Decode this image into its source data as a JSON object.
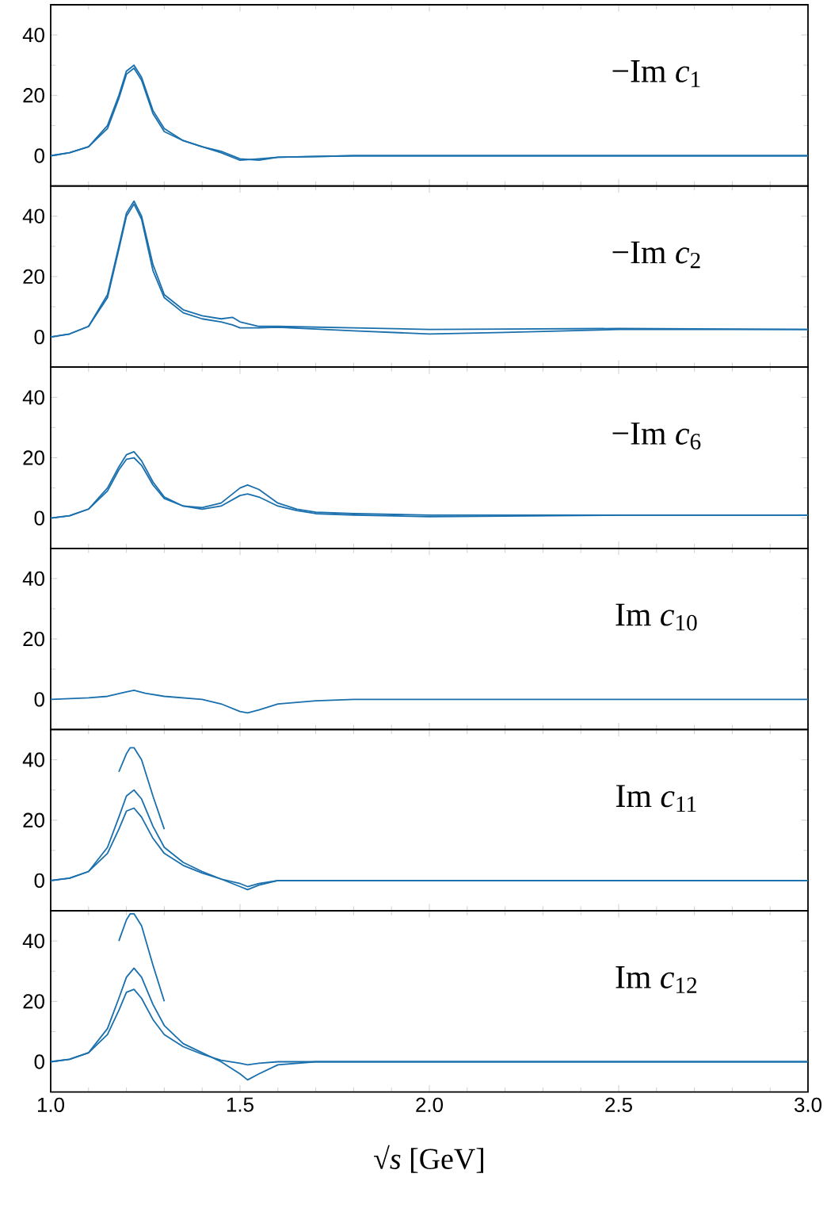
{
  "chart_data": [
    {
      "type": "line",
      "xlim": [
        1,
        3
      ],
      "ylim": [
        -10,
        50
      ],
      "xticks": [
        {
          "value": 1,
          "label": null
        },
        {
          "value": 1.5,
          "label": null
        },
        {
          "value": 2,
          "label": null
        },
        {
          "value": 2.5,
          "label": null
        },
        {
          "value": 3,
          "label": null
        }
      ],
      "yticks": [
        0,
        20,
        40
      ],
      "tick_labels": "y",
      "annotations": [
        "−Im *c*$_{1}$"
      ],
      "x": [
        1.0,
        1.05,
        1.1,
        1.15,
        1.18,
        1.2,
        1.22,
        1.24,
        1.27,
        1.3,
        1.35,
        1.4,
        1.45,
        1.5,
        1.55,
        1.6,
        1.8,
        2.0,
        2.5,
        3.0
      ],
      "series": [
        {
          "color": "#1a6fad",
          "values": [
            0,
            1,
            3,
            10,
            20,
            28,
            30,
            26,
            15,
            9,
            5,
            3,
            1,
            -1.5,
            -1,
            -0.5,
            0,
            0,
            0,
            0
          ]
        },
        {
          "color": "#1a6fad",
          "values": [
            0,
            1,
            3,
            9,
            19,
            27,
            29,
            25,
            14,
            8,
            5,
            3,
            1.5,
            -1,
            -1.5,
            -0.5,
            0,
            0,
            0,
            0
          ]
        }
      ]
    },
    {
      "type": "line",
      "xlim": [
        1,
        3
      ],
      "ylim": [
        -10,
        50
      ],
      "xticks": [
        {
          "value": 1,
          "label": null
        },
        {
          "value": 1.5,
          "label": null
        },
        {
          "value": 2,
          "label": null
        },
        {
          "value": 2.5,
          "label": null
        },
        {
          "value": 3,
          "label": null
        }
      ],
      "yticks": [
        0,
        20,
        40
      ],
      "tick_labels": "y",
      "annotations": [
        "−Im *c*$_{2}$"
      ],
      "x": [
        1.0,
        1.05,
        1.1,
        1.15,
        1.18,
        1.2,
        1.22,
        1.24,
        1.27,
        1.3,
        1.35,
        1.4,
        1.45,
        1.48,
        1.5,
        1.55,
        1.6,
        1.8,
        2.0,
        2.2,
        2.5,
        3.0
      ],
      "series": [
        {
          "color": "#1a6fad",
          "values": [
            0,
            1,
            3.5,
            14,
            30,
            41,
            45,
            40,
            24,
            14,
            9,
            7,
            6,
            6.5,
            5,
            3.5,
            3.5,
            3,
            2.5,
            2.6,
            2.8,
            2.5
          ]
        },
        {
          "color": "#1a6fad",
          "values": [
            0,
            1,
            3.5,
            13,
            29,
            40,
            44,
            39,
            22,
            13,
            8,
            6,
            5,
            4,
            3,
            3,
            3.2,
            2,
            1,
            1.5,
            2.5,
            2.5
          ]
        }
      ]
    },
    {
      "type": "line",
      "xlim": [
        1,
        3
      ],
      "ylim": [
        -10,
        50
      ],
      "xticks": [
        {
          "value": 1,
          "label": null
        },
        {
          "value": 1.5,
          "label": null
        },
        {
          "value": 2,
          "label": null
        },
        {
          "value": 2.5,
          "label": null
        },
        {
          "value": 3,
          "label": null
        }
      ],
      "yticks": [
        0,
        20,
        40
      ],
      "tick_labels": "y",
      "annotations": [
        "−Im *c*$_{6}$"
      ],
      "x": [
        1.0,
        1.05,
        1.1,
        1.15,
        1.18,
        1.2,
        1.22,
        1.24,
        1.27,
        1.3,
        1.35,
        1.4,
        1.45,
        1.5,
        1.52,
        1.55,
        1.6,
        1.65,
        1.7,
        1.8,
        2.0,
        2.5,
        3.0
      ],
      "series": [
        {
          "color": "#1a6fad",
          "values": [
            0,
            0.8,
            3,
            10,
            17,
            21,
            22,
            19,
            12,
            7,
            4,
            3.5,
            5,
            10,
            11,
            9.5,
            5,
            3,
            2,
            1.5,
            1,
            1,
            1
          ]
        },
        {
          "color": "#1a6fad",
          "values": [
            0,
            0.8,
            3,
            9,
            16,
            19.5,
            20,
            17.5,
            11,
            6.5,
            4,
            3,
            4,
            7.5,
            8,
            7,
            4,
            2.5,
            1.5,
            1,
            0.5,
            1,
            1
          ]
        }
      ]
    },
    {
      "type": "line",
      "xlim": [
        1,
        3
      ],
      "ylim": [
        -10,
        50
      ],
      "xticks": [
        {
          "value": 1,
          "label": null
        },
        {
          "value": 1.5,
          "label": null
        },
        {
          "value": 2,
          "label": null
        },
        {
          "value": 2.5,
          "label": null
        },
        {
          "value": 3,
          "label": null
        }
      ],
      "yticks": [
        0,
        20,
        40
      ],
      "tick_labels": "y",
      "annotations": [
        "Im *c*$_{10}$"
      ],
      "x": [
        1.0,
        1.1,
        1.15,
        1.2,
        1.22,
        1.25,
        1.3,
        1.4,
        1.45,
        1.5,
        1.52,
        1.55,
        1.6,
        1.7,
        1.8,
        2.0,
        3.0
      ],
      "series": [
        {
          "color": "#1a6fad",
          "values": [
            0,
            0.5,
            1,
            2.5,
            3,
            2,
            1,
            0,
            -1.5,
            -4,
            -4.5,
            -3.5,
            -1.5,
            -0.5,
            0,
            0,
            0
          ]
        }
      ]
    },
    {
      "type": "line",
      "xlim": [
        1,
        3
      ],
      "ylim": [
        -10,
        50
      ],
      "xticks": [
        {
          "value": 1,
          "label": null
        },
        {
          "value": 1.5,
          "label": null
        },
        {
          "value": 2,
          "label": null
        },
        {
          "value": 2.5,
          "label": null
        },
        {
          "value": 3,
          "label": null
        }
      ],
      "yticks": [
        0,
        20,
        40
      ],
      "tick_labels": "y",
      "annotations": [
        "Im *c*$_{11}$"
      ],
      "x": [
        1.0,
        1.05,
        1.1,
        1.15,
        1.18,
        1.2,
        1.22,
        1.24,
        1.27,
        1.3,
        1.35,
        1.4,
        1.45,
        1.5,
        1.52,
        1.55,
        1.6,
        2.0,
        3.0
      ],
      "series": [
        {
          "color": "#1a6fad",
          "values": [
            0,
            0.8,
            3,
            9,
            17,
            23,
            24,
            21,
            14,
            9,
            5,
            2.5,
            0.5,
            -2,
            -3,
            -1.5,
            0,
            0,
            0
          ]
        },
        {
          "color": "#1a6fad",
          "values": [
            0,
            0.8,
            3,
            11,
            21,
            28,
            30,
            27,
            18,
            11,
            6,
            3,
            0.5,
            -1,
            -2,
            -1,
            0,
            0,
            0
          ]
        },
        {
          "color": "#1a6fad",
          "x": [
            1.18,
            1.2,
            1.21,
            1.22,
            1.24,
            1.27,
            1.3
          ],
          "values": [
            36,
            42,
            44,
            44,
            40,
            28,
            17
          ]
        }
      ]
    },
    {
      "type": "line",
      "xlim": [
        1,
        3
      ],
      "ylim": [
        -10,
        50
      ],
      "xticks": [
        {
          "value": 1,
          "label": "1.0"
        },
        {
          "value": 1.5,
          "label": "1.5"
        },
        {
          "value": 2,
          "label": "2.0"
        },
        {
          "value": 2.5,
          "label": "2.5"
        },
        {
          "value": 3,
          "label": "3.0"
        }
      ],
      "yticks": [
        0,
        20,
        40
      ],
      "xlabel": "√*s* [GeV]",
      "annotations": [
        "Im *c*$_{12}$"
      ],
      "x": [
        1.0,
        1.05,
        1.1,
        1.15,
        1.18,
        1.2,
        1.22,
        1.24,
        1.27,
        1.3,
        1.35,
        1.4,
        1.45,
        1.5,
        1.52,
        1.55,
        1.6,
        1.7,
        2.0,
        3.0
      ],
      "series": [
        {
          "color": "#1a6fad",
          "values": [
            0,
            0.8,
            3,
            9,
            17,
            23,
            24,
            21,
            14,
            9,
            5,
            2.5,
            0.5,
            -0.5,
            -1,
            -0.5,
            0,
            0,
            0,
            0
          ]
        },
        {
          "color": "#1a6fad",
          "values": [
            0,
            0.8,
            3,
            11,
            21,
            28,
            31,
            28,
            19,
            12,
            6,
            3,
            0,
            -4,
            -6,
            -4,
            -1,
            0,
            0,
            0
          ]
        },
        {
          "color": "#1a6fad",
          "x": [
            1.18,
            1.2,
            1.21,
            1.22,
            1.24,
            1.27,
            1.3
          ],
          "values": [
            40,
            47,
            49,
            49,
            45,
            32,
            20
          ]
        }
      ]
    }
  ]
}
